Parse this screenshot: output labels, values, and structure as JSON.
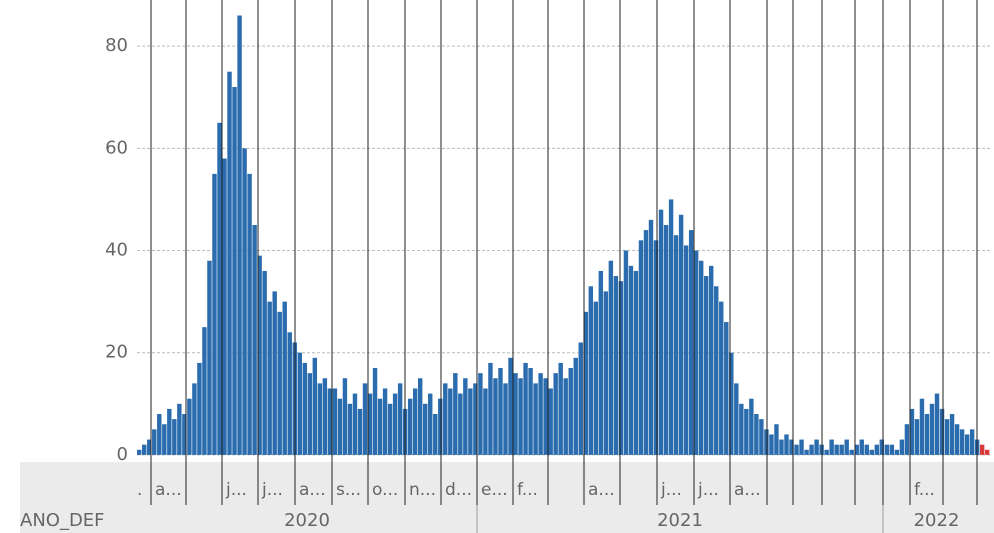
{
  "chart_data": {
    "type": "bar",
    "axis_title": "ANO_DEF",
    "months": [
      ".",
      "a...",
      null,
      "j...",
      "j...",
      "a...",
      "s...",
      "o...",
      "n...",
      "d...",
      "e...",
      "f...",
      null,
      "a...",
      null,
      "j...",
      "j...",
      "a...",
      null,
      null,
      null,
      null,
      null,
      "f...",
      null,
      null
    ],
    "years": [
      "2020",
      "2021",
      "2022"
    ],
    "ylim": [
      -1,
      87
    ],
    "yticks": [
      0,
      20,
      40,
      60,
      80
    ],
    "grid": true,
    "series": [
      {
        "color": "#2a6cae",
        "values": [
          1,
          2,
          3,
          5,
          8,
          6,
          9,
          7,
          10,
          8,
          11,
          14,
          18,
          25,
          38,
          55,
          65,
          58,
          75,
          72,
          86,
          60,
          55,
          45,
          39,
          36,
          30,
          32,
          28,
          30,
          24,
          22,
          20,
          18,
          16,
          19,
          14,
          15,
          13,
          13,
          11,
          15,
          10,
          12,
          9,
          14,
          12,
          17,
          11,
          13,
          10,
          12,
          14,
          9,
          11,
          13,
          15,
          10,
          12,
          8,
          11,
          14,
          13,
          16,
          12,
          15,
          13,
          14,
          16,
          13,
          18,
          15,
          17,
          14,
          19,
          16,
          15,
          18,
          17,
          14,
          16,
          15,
          13,
          16,
          18,
          15,
          17,
          19,
          22,
          28,
          33,
          30,
          36,
          32,
          38,
          35,
          34,
          40,
          37,
          36,
          42,
          44,
          46,
          42,
          48,
          45,
          50,
          43,
          47,
          41,
          44,
          40,
          38,
          35,
          37,
          33,
          30,
          26,
          20,
          14,
          10,
          9,
          11,
          8,
          7,
          5,
          4,
          6,
          3,
          4,
          3,
          2,
          3,
          1,
          2,
          3,
          2,
          1,
          3,
          2,
          2,
          3,
          1,
          2,
          3,
          2,
          1,
          2,
          3,
          2,
          2,
          1,
          3,
          6,
          9,
          7,
          11,
          8,
          10,
          12,
          9,
          7,
          8,
          6,
          5,
          4,
          5,
          3,
          null,
          null
        ]
      },
      {
        "color": "#d9383a",
        "values": [
          null,
          null,
          null,
          null,
          null,
          null,
          null,
          null,
          null,
          null,
          null,
          null,
          null,
          null,
          null,
          null,
          null,
          null,
          null,
          null,
          null,
          null,
          null,
          null,
          null,
          null,
          null,
          null,
          null,
          null,
          null,
          null,
          null,
          null,
          null,
          null,
          null,
          null,
          null,
          null,
          null,
          null,
          null,
          null,
          null,
          null,
          null,
          null,
          null,
          null,
          null,
          null,
          null,
          null,
          null,
          null,
          null,
          null,
          null,
          null,
          null,
          null,
          null,
          null,
          null,
          null,
          null,
          null,
          null,
          null,
          null,
          null,
          null,
          null,
          null,
          null,
          null,
          null,
          null,
          null,
          null,
          null,
          null,
          null,
          null,
          null,
          null,
          null,
          null,
          null,
          null,
          null,
          null,
          null,
          null,
          null,
          null,
          null,
          null,
          null,
          null,
          null,
          null,
          null,
          null,
          null,
          null,
          null,
          null,
          null,
          null,
          null,
          null,
          null,
          null,
          null,
          null,
          null,
          null,
          null,
          null,
          null,
          null,
          null,
          null,
          null,
          null,
          null,
          null,
          null,
          null,
          null,
          null,
          null,
          null,
          null,
          null,
          null,
          null,
          null,
          null,
          null,
          null,
          null,
          null,
          null,
          null,
          null,
          null,
          null,
          null,
          null,
          null,
          null,
          null,
          null,
          null,
          null,
          null,
          null,
          null,
          null,
          null,
          null,
          null,
          null,
          null,
          null,
          2,
          1
        ]
      }
    ]
  }
}
